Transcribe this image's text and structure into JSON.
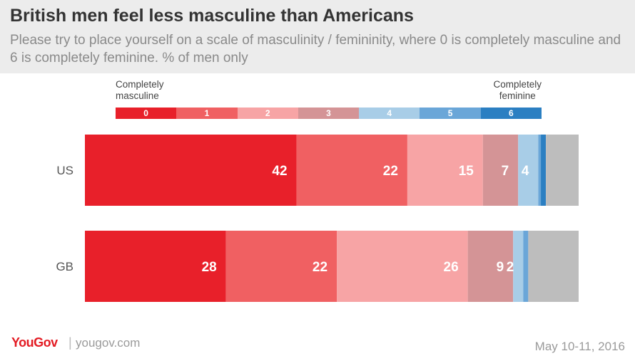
{
  "header": {
    "title": "British men feel less masculine than Americans",
    "subtitle": "Please try to place yourself on a scale of masculinity / femininity, where 0 is completely masculine and 6 is completely feminine. % of men only"
  },
  "legend": {
    "left_label_line1": "Completely",
    "left_label_line2": "masculine",
    "right_label_line1": "Completely",
    "right_label_line2": "feminine",
    "items": [
      {
        "label": "0",
        "color": "#e8202a"
      },
      {
        "label": "1",
        "color": "#f06062"
      },
      {
        "label": "2",
        "color": "#f7a4a5"
      },
      {
        "label": "3",
        "color": "#d49496"
      },
      {
        "label": "4",
        "color": "#a8cde7"
      },
      {
        "label": "5",
        "color": "#6aa6d8"
      },
      {
        "label": "6",
        "color": "#2b7fc2"
      }
    ],
    "no_answer_color": "#bdbdbd"
  },
  "chart_data": {
    "type": "bar",
    "orientation": "horizontal",
    "stacked": true,
    "categories": [
      "US",
      "GB"
    ],
    "series": [
      {
        "name": "0",
        "values": [
          42,
          28
        ],
        "labels": [
          "42",
          "28"
        ]
      },
      {
        "name": "1",
        "values": [
          22,
          22
        ],
        "labels": [
          "22",
          "22"
        ]
      },
      {
        "name": "2",
        "values": [
          15,
          26
        ],
        "labels": [
          "15",
          "26"
        ]
      },
      {
        "name": "3",
        "values": [
          7,
          9
        ],
        "labels": [
          "7",
          "9"
        ]
      },
      {
        "name": "4",
        "values": [
          4,
          2
        ],
        "labels": [
          "4",
          "2"
        ]
      },
      {
        "name": "5",
        "values": [
          0.5,
          1
        ],
        "labels": [
          "",
          ""
        ]
      },
      {
        "name": "6",
        "values": [
          1,
          0
        ],
        "labels": [
          "",
          ""
        ]
      },
      {
        "name": "",
        "values": [
          6.5,
          10
        ],
        "labels": [
          "",
          ""
        ]
      }
    ],
    "xlim": [
      0,
      98
    ]
  },
  "footer": {
    "logo": "YouGov",
    "separator": "|",
    "url": "yougov.com",
    "date": "May 10-11, 2016"
  }
}
